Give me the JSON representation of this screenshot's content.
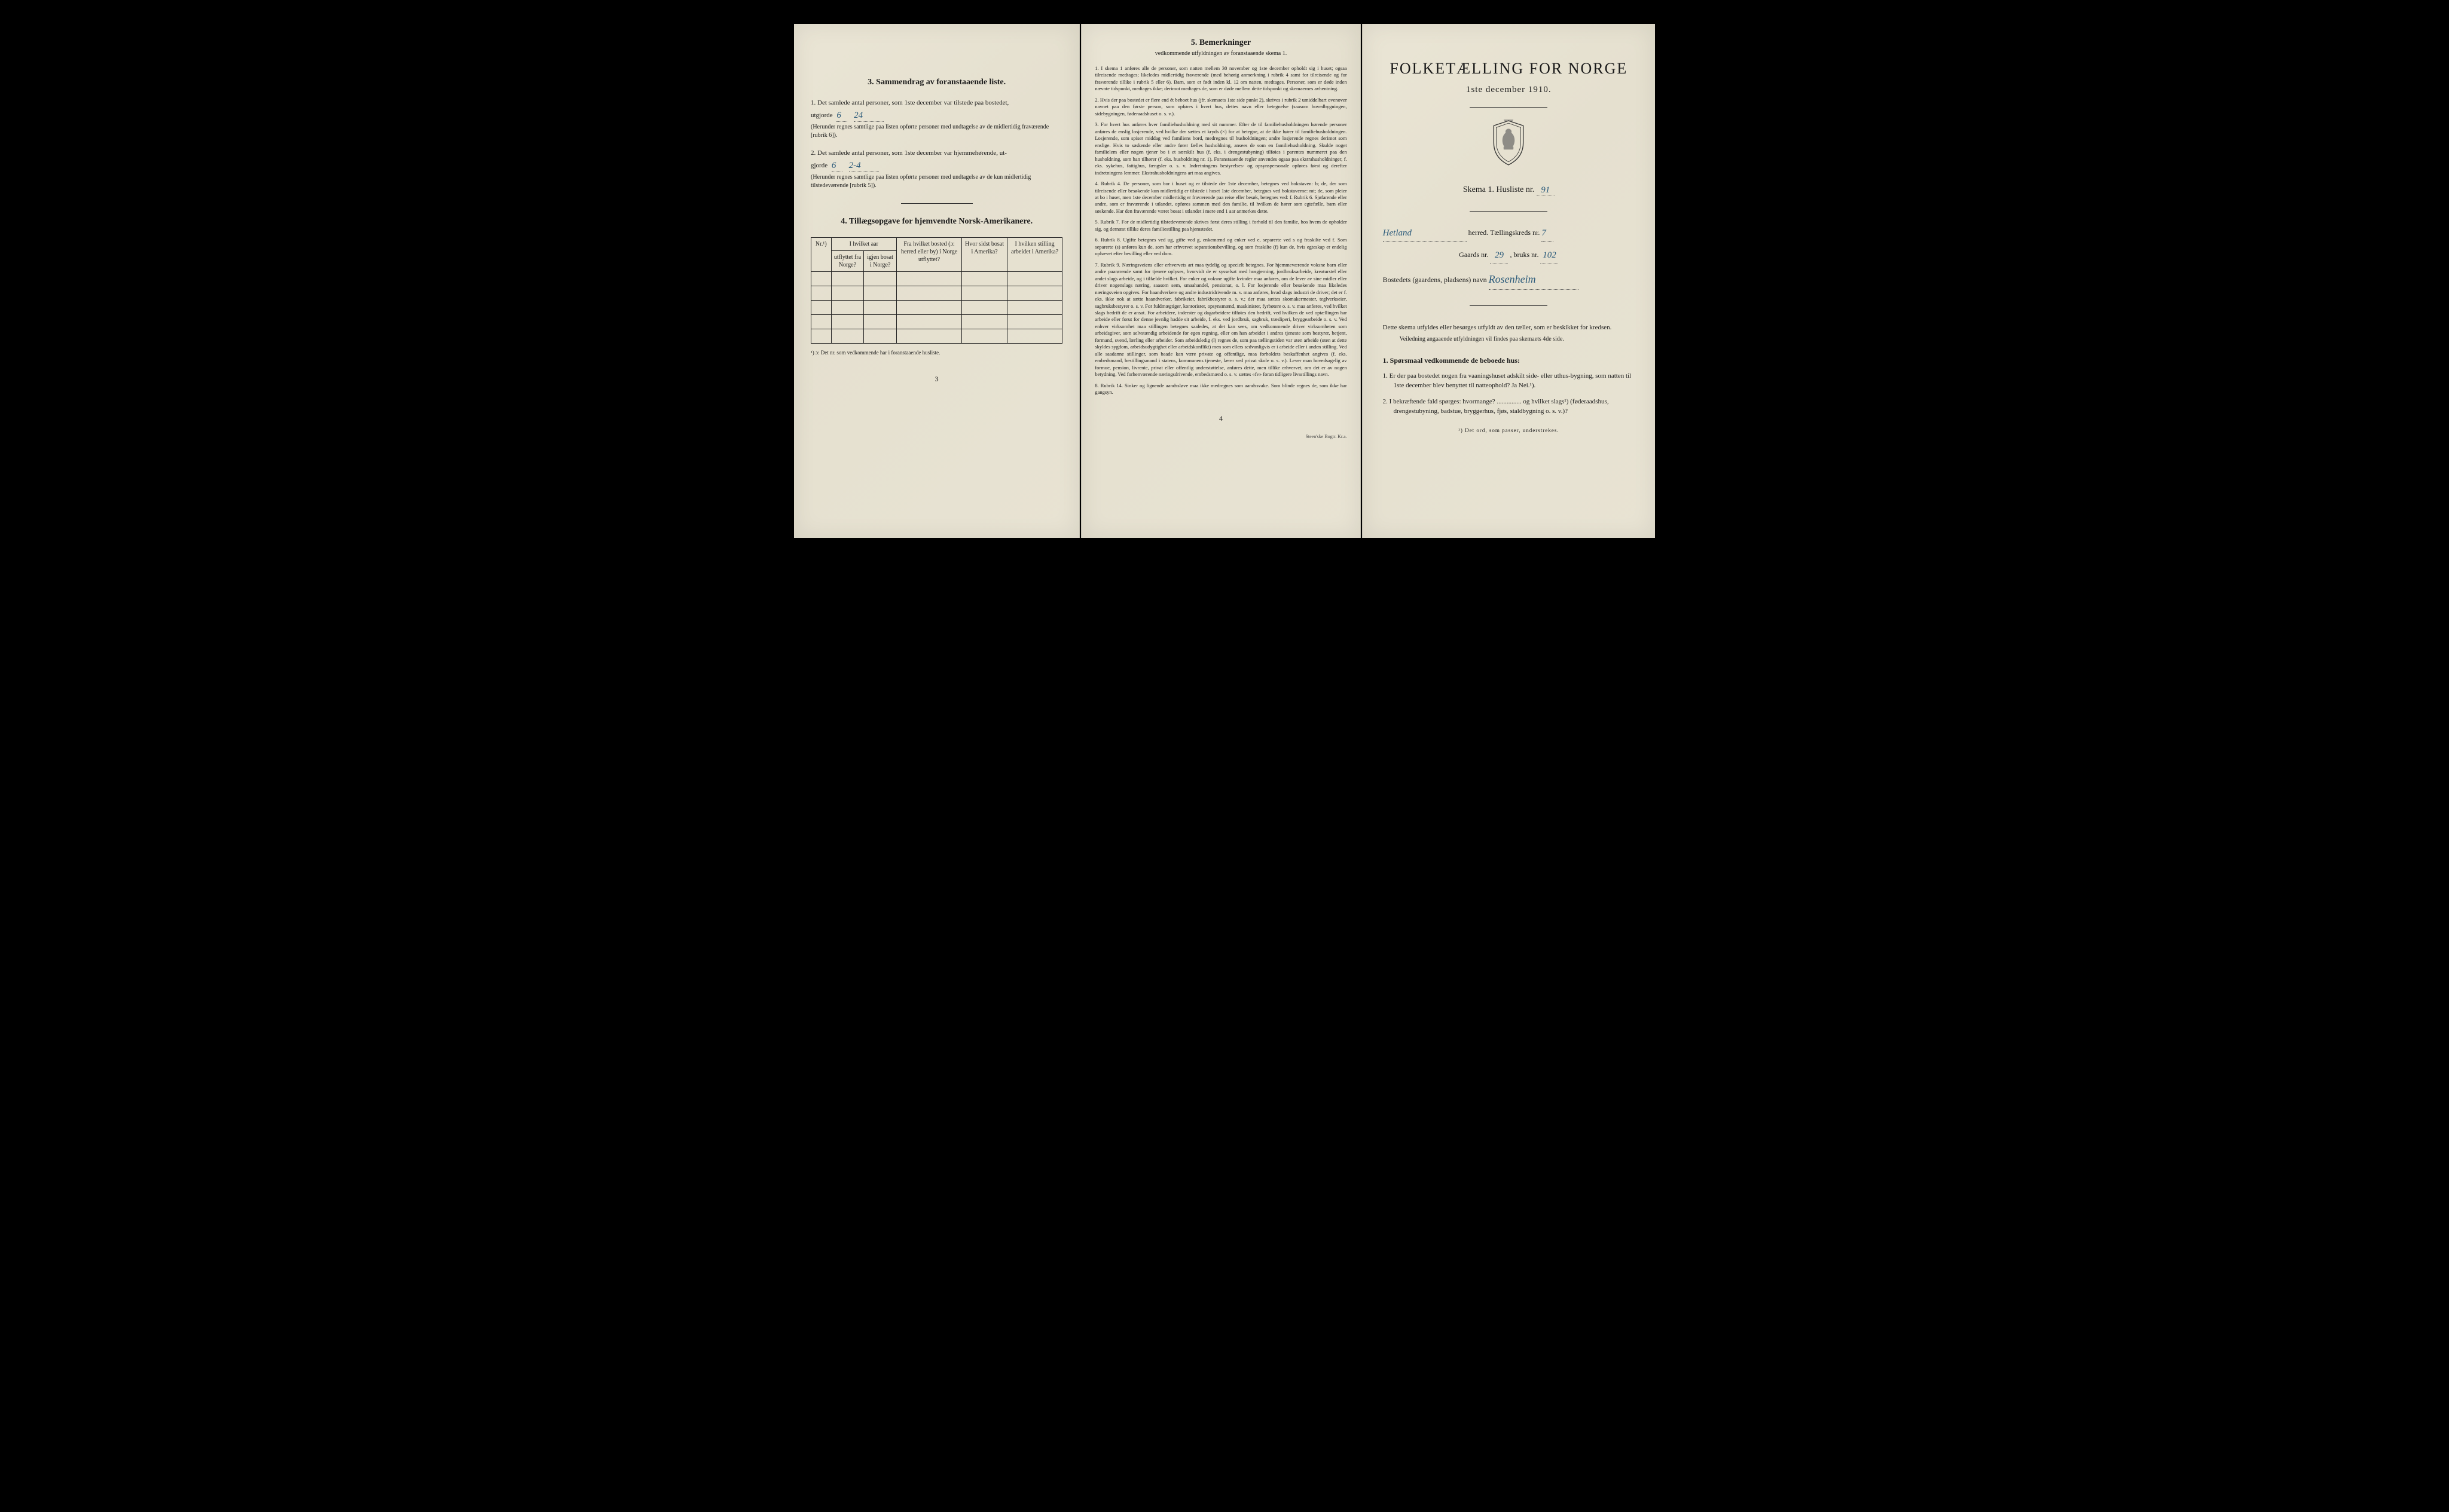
{
  "colors": {
    "paper": "#e8e3d3",
    "ink": "#1a1a1a",
    "handwriting": "#2b5a7a",
    "background": "#000000"
  },
  "page1": {
    "section3_title": "3.   Sammendrag av foranstaaende liste.",
    "item1_text_a": "1. Det samlede antal personer, som 1ste december var tilstede paa bostedet,",
    "item1_text_b": "utgjorde",
    "item1_value1": "6",
    "item1_value2": "24",
    "item1_note": "(Herunder regnes samtlige paa listen opførte personer med undtagelse av de midlertidig fraværende [rubrik 6]).",
    "item2_text_a": "2. Det samlede antal personer, som 1ste december var hjemmehørende, ut-",
    "item2_text_b": "gjorde",
    "item2_value1": "6",
    "item2_value2": "2-4",
    "item2_note": "(Herunder regnes samtlige paa listen opførte personer med undtagelse av de kun midlertidig tilstedeværende [rubrik 5]).",
    "section4_title": "4.   Tillægsopgave for hjemvendte Norsk-Amerikanere.",
    "table": {
      "col1": "Nr.¹)",
      "col2a": "I hvilket aar",
      "col2b": "utflyttet fra Norge?",
      "col2c": "igjen bosat i Norge?",
      "col3": "Fra hvilket bosted (ɔ: herred eller by) i Norge utflyttet?",
      "col4": "Hvor sidst bosat i Amerika?",
      "col5": "I hvilken stilling arbeidet i Amerika?",
      "row_count": 5
    },
    "footnote": "¹) ɔ: Det nr. som vedkommende har i foranstaaende husliste.",
    "page_num": "3"
  },
  "page2": {
    "title": "5.   Bemerkninger",
    "subtitle": "vedkommende utfyldningen av foranstaaende skema 1.",
    "items": [
      "1. I skema 1 anføres alle de personer, som natten mellem 30 november og 1ste december opholdt sig i huset; ogsaa tilreisende medtages; likeledes midlertidig fraværende (med behørig anmerkning i rubrik 4 samt for tilreisende og for fraværende tillike i rubrik 5 eller 6). Barn, som er født inden kl. 12 om natten, medtages. Personer, som er døde inden nævnte tidspunkt, medtages ikke; derimot medtages de, som er døde mellem dette tidspunkt og skemaernes avhentning.",
      "2. Hvis der paa bostedet er flere end ét beboet hus (jfr. skemaets 1ste side punkt 2), skrives i rubrik 2 umiddelbart ovenover navnet paa den første person, som opføres i hvert hus, dettes navn eller betegnelse (saasom hovedbygningen, sidebygningen, føderaadshuset o. s. v.).",
      "3. For hvert hus anføres hver familiehusholdning med sit nummer. Efter de til familiehusholdningen hørende personer anføres de enslig losjerende, ved hvilke der sættes et kryds (×) for at betegne, at de ikke hører til familiehusholdningen. Losjerende, som spiser middag ved familiens bord, medregnes til husholdningen; andre losjerende regnes derimot som enslige. Hvis to søskende eller andre fører fælles husholdning, ansees de som en familiehusholdning. Skulde noget familielem eller nogen tjener bo i et særskilt hus (f. eks. i drengestubyning) tilføies i parentes nummeret paa den husholdning, som han tilhører (f. eks. husholdning nr. 1).\n    Foranstaaende regler anvendes ogsaa paa ekstrahusholdninger, f. eks. sykehus, fattighus, fængsler o. s. v. Indretningens bestyrelses- og opsynspersonale opføres først og derefter indretningens lemmer. Ekstrahusholdningens art maa angives.",
      "4. Rubrik 4. De personer, som bor i huset og er tilstede der 1ste december, betegnes ved bokstaven: b; de, der som tilreisende eller besøkende kun midlertidig er tilstede i huset 1ste december, betegnes ved bokstaverne: mt; de, som pleier at bo i huset, men 1ste december midlertidig er fraværende paa reise eller besøk, betegnes ved: f.\n    Rubrik 6. Sjøfarende eller andre, som er fraværende i utlandet, opføres sammen med den familie, til hvilken de hører som egtefælle, barn eller søskende.\n    Har den fraværende været bosat i utlandet i mere end 1 aar anmerkes dette.",
      "5. Rubrik 7. For de midlertidig tilstedeværende skrives først deres stilling i forhold til den familie, hos hvem de opholder sig, og dernæst tillike deres familiestilling paa hjemstedet.",
      "6. Rubrik 8. Ugifte betegnes ved ug, gifte ved g, enkemænd og enker ved e, separerte ved s og fraskilte ved f. Som separerte (s) anføres kun de, som har erhvervet separationsbevilling, og som fraskilte (f) kun de, hvis egteskap er endelig ophævet efter bevilling eller ved dom.",
      "7. Rubrik 9. Næringsveiens eller erhvervets art maa tydelig og specielt betegnes.\n    For hjemmeværende voksne barn eller andre paarørende samt for tjenere oplyses, hvorvidt de er sysselsat med husgjerning, jordbruksarbeide, kreaturstel eller andet slags arbeide, og i tilfælde hvilket. For enker og voksne ugifte kvinder maa anføres, om de lever av sine midler eller driver nogenslags næring, saasom søm, smaahandel, pensionat, o. l.\n    For losjerende eller besøkende maa likeledes næringsveien opgives.\n    For haandverkere og andre industridrivende m. v. maa anføres, hvad slags industri de driver; det er f. eks. ikke nok at sætte haandverker, fabrikeier, fabrikbestyrer o. s. v.; der maa sættes skomakermester, teglverkseier, sagbruksbestyrer o. s. v.\n    For fuldmægtiger, kontorister, opsynsmænd, maskinister, fyrbøtere o. s. v. maa anføres, ved hvilket slags bedrift de er ansat.\n    For arbeidere, inderster og dagarbeidere tilføies den bedrift, ved hvilken de ved optællingen har arbeide eller forut for denne jevnlig hadde sit arbeide, f. eks. ved jordbruk, sagbruk, træsliperi, bryggearbeide o. s. v.\n    Ved enhver virksomhet maa stillingen betegnes saaledes, at det kan sees, om vedkommende driver virksomheten som arbeidsgiver, som selvstændig arbeidende for egen regning, eller om han arbeider i andres tjeneste som bestyrer, betjent, formand, svend, lærling eller arbeider.\n    Som arbeidsledig (l) regnes de, som paa tællingstiden var uten arbeide (uten at dette skyldes sygdom, arbeidsudygtighet eller arbeidskonflikt) men som ellers sedvanligvis er i arbeide eller i anden stilling.\n    Ved alle saadanne stillinger, som baade kan være private og offentlige, maa forholdets beskaffenhet angives (f. eks. embedsmand, bestillingsmand i statens, kommunens tjeneste, lærer ved privat skole o. s. v.).\n    Lever man hovedsagelig av formue, pension, livrente, privat eller offentlig understøttelse, anføres dette, men tillike erhvervet, om det er av nogen betydning.\n    Ved forhenværende næringsdrivende, embedsmænd o. s. v. sættes «fv» foran tidligere livsstillings navn.",
      "8. Rubrik 14. Sinker og lignende aandssløve maa ikke medregnes som aandssvake.\n    Som blinde regnes de, som ikke har gangsyn."
    ],
    "page_num": "4",
    "printer": "Steen'ske Bogtr.  Kr.a."
  },
  "page3": {
    "title": "FOLKETÆLLING FOR NORGE",
    "date": "1ste december 1910.",
    "schema_label": "Skema 1.  Husliste nr.",
    "schema_value": "91",
    "herred_value": "Hetland",
    "herred_label": "herred.  Tællingskreds nr.",
    "kreds_value": "7",
    "gaard_label": "Gaards nr.",
    "gaard_value": "29",
    "bruks_label": ", bruks nr.",
    "bruks_value": "102",
    "bosted_label": "Bostedets (gaardens, pladsens) navn",
    "bosted_value": "Rosenheim",
    "instructions_a": "Dette skema utfyldes eller besørges utfyldt av den tæller, som er beskikket for kredsen.",
    "instructions_b": "Veiledning angaaende utfyldningen vil findes paa skemaets 4de side.",
    "q_head": "1. Spørsmaal vedkommende de beboede hus:",
    "q1": "1. Er der paa bostedet nogen fra vaaningshuset adskilt side- eller uthus-bygning, som natten til 1ste december blev benyttet til natteophold?   Ja   Nei.¹).",
    "q2": "2. I bekræftende fald spørges: hvormange? ............... og hvilket slags¹) (føderaadshus, drengestubyning, badstue, bryggerhus, fjøs, staldbygning o. s. v.)?",
    "footnote": "¹) Det ord, som passer, understrekes."
  }
}
